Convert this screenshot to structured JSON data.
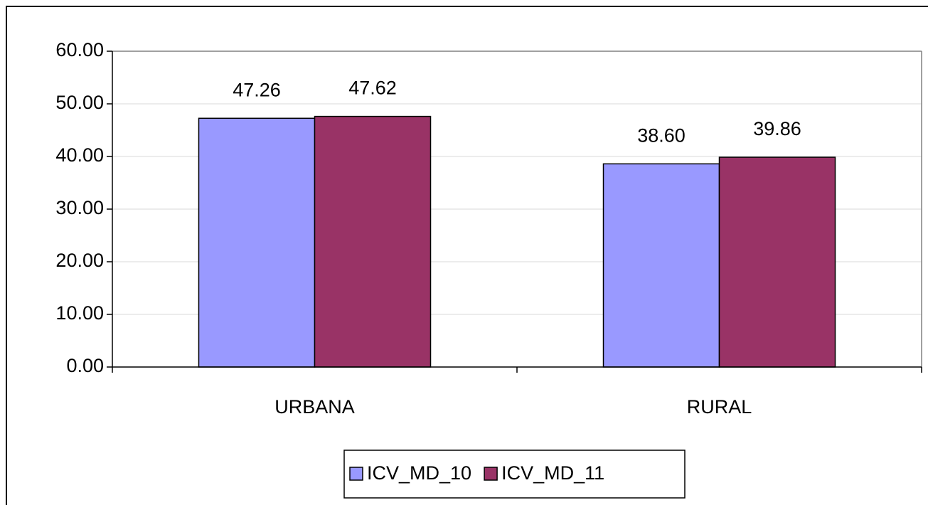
{
  "chart_data": {
    "type": "bar",
    "categories": [
      "URBANA",
      "RURAL"
    ],
    "series": [
      {
        "name": "ICV_MD_10",
        "color": "#9999ff",
        "values": [
          47.26,
          38.6
        ],
        "value_labels": [
          "47.26",
          "38.60"
        ]
      },
      {
        "name": "ICV_MD_11",
        "color": "#993366",
        "values": [
          47.62,
          39.86
        ],
        "value_labels": [
          "47.62",
          "39.86"
        ]
      }
    ],
    "ylim": [
      0,
      60
    ],
    "yticks": [
      {
        "value": 0,
        "label": "0.00"
      },
      {
        "value": 10,
        "label": "10.00"
      },
      {
        "value": 20,
        "label": "20.00"
      },
      {
        "value": 30,
        "label": "30.00"
      },
      {
        "value": 40,
        "label": "40.00"
      },
      {
        "value": 50,
        "label": "50.00"
      },
      {
        "value": 60,
        "label": "60.00"
      }
    ],
    "grid": true,
    "legend": "bottom"
  }
}
